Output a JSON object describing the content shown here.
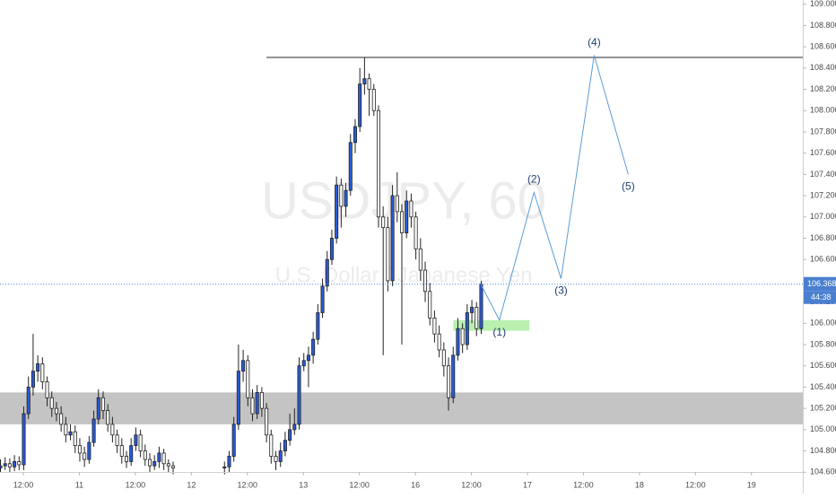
{
  "chart_data": {
    "type": "candlestick",
    "symbol_watermark": "USDJPY, 60",
    "name_watermark": "U.S. Dollar / Japanese Yen",
    "up_color": "#2a5bd7",
    "down_color": "#ffffff",
    "x": [
      0,
      1,
      2,
      3,
      4,
      5,
      6,
      7,
      8,
      9,
      10,
      11,
      12,
      13,
      14,
      15,
      16,
      17,
      18,
      19,
      20,
      21,
      22,
      23,
      24,
      25,
      26,
      27,
      28,
      29,
      30,
      31,
      32,
      33,
      34,
      35,
      36,
      37,
      48,
      49,
      50,
      51,
      52,
      53,
      54,
      55,
      56,
      57,
      58,
      59,
      60,
      61,
      62,
      63,
      64,
      65,
      66,
      67,
      68,
      69,
      70,
      71,
      72,
      73,
      74,
      75,
      76,
      77,
      78,
      79,
      80,
      81,
      82,
      83,
      84,
      85,
      86,
      87,
      88,
      89,
      90,
      91,
      92,
      93,
      94,
      95,
      96,
      97,
      98,
      99,
      100,
      101,
      102,
      103
    ],
    "open": [
      104.64,
      104.66,
      104.68,
      104.65,
      104.7,
      104.67,
      105.15,
      105.4,
      105.55,
      105.62,
      105.45,
      105.3,
      105.2,
      105.15,
      105.05,
      104.95,
      104.98,
      104.85,
      104.78,
      104.72,
      104.88,
      105.1,
      105.3,
      105.18,
      105.05,
      104.95,
      104.85,
      104.75,
      104.7,
      104.85,
      104.95,
      104.8,
      104.72,
      104.66,
      104.7,
      104.78,
      104.68,
      104.66,
      104.64,
      104.65,
      104.75,
      105.05,
      105.55,
      105.65,
      105.3,
      105.15,
      105.35,
      105.2,
      104.95,
      104.75,
      104.7,
      104.8,
      104.9,
      105.0,
      105.05,
      105.6,
      105.65,
      105.7,
      105.85,
      106.1,
      106.35,
      106.6,
      106.8,
      107.3,
      107.1,
      107.25,
      107.7,
      107.85,
      108.25,
      108.3,
      108.2,
      108.0,
      107.0,
      106.9,
      106.4,
      107.2,
      107.05,
      106.85,
      107.15,
      107.0,
      106.7,
      106.5,
      106.3,
      106.05,
      105.9,
      105.75,
      105.6,
      105.3,
      105.7,
      105.95,
      105.8,
      106.1,
      106.15,
      105.95
    ],
    "high": [
      104.72,
      104.74,
      104.73,
      104.76,
      104.75,
      105.22,
      105.5,
      105.9,
      105.7,
      105.68,
      105.5,
      105.36,
      105.26,
      105.22,
      105.12,
      105.05,
      105.04,
      104.92,
      104.84,
      104.94,
      105.18,
      105.38,
      105.36,
      105.24,
      105.12,
      105.0,
      104.92,
      104.8,
      104.92,
      105.02,
      105.0,
      104.86,
      104.78,
      104.76,
      104.84,
      104.82,
      104.72,
      104.7,
      104.7,
      104.8,
      105.12,
      105.8,
      105.75,
      105.7,
      105.38,
      105.42,
      105.4,
      105.25,
      105.0,
      104.8,
      104.88,
      104.98,
      105.15,
      105.2,
      105.68,
      105.72,
      105.78,
      105.92,
      106.18,
      106.42,
      106.68,
      106.88,
      107.38,
      107.36,
      107.32,
      107.78,
      107.92,
      108.4,
      108.5,
      108.35,
      108.25,
      108.05,
      107.1,
      107.0,
      107.3,
      107.42,
      107.12,
      107.25,
      107.22,
      107.05,
      106.8,
      106.58,
      106.38,
      106.12,
      105.98,
      105.82,
      105.68,
      105.78,
      106.05,
      106.0,
      106.18,
      106.22,
      106.2,
      106.4
    ],
    "low": [
      104.6,
      104.62,
      104.6,
      104.61,
      104.62,
      104.62,
      105.1,
      105.32,
      105.45,
      105.38,
      105.22,
      105.12,
      105.08,
      104.98,
      104.88,
      104.9,
      104.78,
      104.7,
      104.65,
      104.68,
      104.84,
      105.05,
      105.1,
      104.98,
      104.88,
      104.78,
      104.68,
      104.64,
      104.66,
      104.8,
      104.74,
      104.66,
      104.6,
      104.62,
      104.64,
      104.62,
      104.6,
      104.58,
      104.58,
      104.6,
      104.7,
      105.0,
      105.45,
      105.22,
      105.08,
      105.1,
      105.12,
      104.88,
      104.68,
      104.62,
      104.65,
      104.75,
      104.85,
      104.95,
      105.0,
      105.55,
      105.4,
      105.62,
      105.8,
      106.05,
      106.3,
      106.55,
      106.75,
      106.9,
      107.0,
      107.2,
      107.6,
      107.8,
      108.15,
      107.95,
      107.95,
      106.9,
      105.7,
      106.3,
      106.35,
      106.95,
      105.8,
      106.8,
      106.9,
      106.6,
      106.4,
      106.2,
      105.98,
      105.82,
      105.68,
      105.5,
      105.18,
      105.25,
      105.65,
      105.72,
      105.75,
      106.0,
      105.88,
      105.9
    ],
    "close": [
      104.66,
      104.68,
      104.65,
      104.7,
      104.67,
      105.15,
      105.4,
      105.55,
      105.62,
      105.45,
      105.3,
      105.2,
      105.15,
      105.05,
      104.95,
      104.98,
      104.85,
      104.78,
      104.72,
      104.88,
      105.1,
      105.3,
      105.18,
      105.05,
      104.95,
      104.85,
      104.75,
      104.7,
      104.85,
      104.95,
      104.8,
      104.72,
      104.66,
      104.7,
      104.78,
      104.68,
      104.66,
      104.64,
      104.65,
      104.75,
      105.05,
      105.55,
      105.65,
      105.3,
      105.15,
      105.35,
      105.2,
      104.95,
      104.75,
      104.7,
      104.8,
      104.9,
      105.0,
      105.05,
      105.6,
      105.65,
      105.7,
      105.85,
      106.1,
      106.35,
      106.6,
      106.8,
      107.3,
      107.1,
      107.25,
      107.7,
      107.85,
      108.25,
      108.3,
      108.2,
      108.0,
      107.0,
      106.9,
      106.4,
      107.2,
      107.05,
      106.85,
      107.15,
      107.0,
      106.7,
      106.5,
      106.3,
      106.05,
      105.9,
      105.75,
      105.6,
      105.3,
      105.7,
      105.95,
      105.8,
      106.1,
      106.15,
      105.95,
      106.368
    ],
    "countdown": "44:38",
    "xlim": [
      0,
      172
    ],
    "ylim": [
      104.56,
      109.04
    ],
    "xticks": [
      {
        "value": 5,
        "label": "12:00"
      },
      {
        "value": 17,
        "label": "11"
      },
      {
        "value": 29,
        "label": "12:00"
      },
      {
        "value": 41,
        "label": "12"
      },
      {
        "value": 53,
        "label": "12:00"
      },
      {
        "value": 65,
        "label": "13"
      },
      {
        "value": 77,
        "label": "12:00"
      },
      {
        "value": 89,
        "label": "16"
      },
      {
        "value": 101,
        "label": "12:00"
      },
      {
        "value": 113,
        "label": "17"
      },
      {
        "value": 125,
        "label": "12:00"
      },
      {
        "value": 137,
        "label": "18"
      },
      {
        "value": 149,
        "label": "12:00"
      },
      {
        "value": 161,
        "label": "19"
      }
    ],
    "yticks": [
      {
        "value": 104.6,
        "label": "104.600"
      },
      {
        "value": 104.8,
        "label": "104.800"
      },
      {
        "value": 105,
        "label": "105.000"
      },
      {
        "value": 105.2,
        "label": "105.200"
      },
      {
        "value": 105.4,
        "label": "105.400"
      },
      {
        "value": 105.6,
        "label": "105.600"
      },
      {
        "value": 105.8,
        "label": "105.800"
      },
      {
        "value": 106,
        "label": "106.000"
      },
      {
        "value": 106.2,
        "label": "106.200"
      },
      {
        "value": 106.4,
        "label": "106.400"
      },
      {
        "value": 106.6,
        "label": "106.600"
      },
      {
        "value": 106.8,
        "label": "106.800"
      },
      {
        "value": 107,
        "label": "107.000"
      },
      {
        "value": 107.2,
        "label": "107.200"
      },
      {
        "value": 107.4,
        "label": "107.400"
      },
      {
        "value": 107.6,
        "label": "107.600"
      },
      {
        "value": 107.8,
        "label": "107.800"
      },
      {
        "value": 108,
        "label": "108.000"
      },
      {
        "value": 108.2,
        "label": "108.200"
      },
      {
        "value": 108.4,
        "label": "108.400"
      },
      {
        "value": 108.6,
        "label": "108.600"
      },
      {
        "value": 108.8,
        "label": "108.800"
      },
      {
        "value": 109,
        "label": "109.000"
      }
    ],
    "resistance": {
      "value": 108.5,
      "x_start": 57.1
    },
    "zone": {
      "low": 105.05,
      "high": 105.35,
      "color": "#c4c4c4"
    },
    "target_box": {
      "low": 105.93,
      "high": 106.03,
      "x": [
        97.1,
        113.4
      ],
      "color": "#b9f0b0"
    },
    "wave": {
      "x": [
        103,
        107,
        114.4,
        120.2,
        127.3,
        134.6
      ],
      "y": [
        106.368,
        106.03,
        107.23,
        106.42,
        108.52,
        107.4
      ],
      "labels": [
        "(1)",
        "(2)",
        "(3)",
        "(4)",
        "(5)"
      ],
      "color": "#5b9bd5"
    }
  }
}
